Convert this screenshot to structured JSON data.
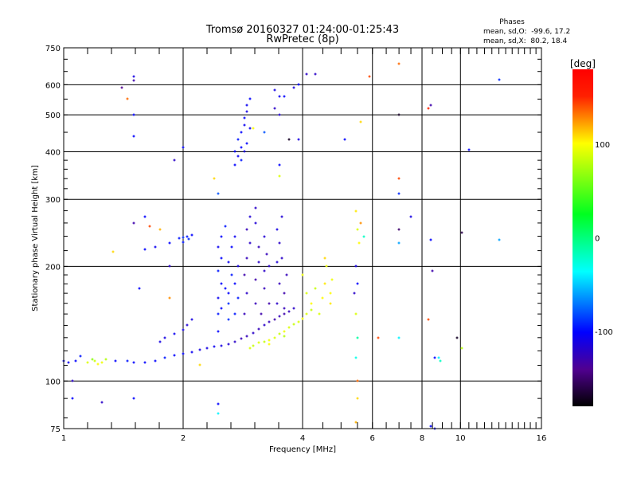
{
  "chart_data": {
    "type": "scatter",
    "title": "Tromsø 20160327 01:24:00-01:25:43",
    "subtitle": "RwPretec (8p)",
    "xlabel": "Frequency [MHz]",
    "ylabel": "Stationary phase Virtual Height [km]",
    "xscale": "log",
    "yscale": "log",
    "xlim": [
      1,
      16
    ],
    "ylim": [
      75,
      750
    ],
    "xticks": [
      "1",
      "2",
      "4",
      "6",
      "8",
      "10",
      "16"
    ],
    "xtick_values": [
      1,
      2,
      4,
      6,
      8,
      10,
      16
    ],
    "yticks": [
      "75",
      "100",
      "200",
      "300",
      "400",
      "500",
      "600",
      "750"
    ],
    "ytick_values": [
      75,
      100,
      200,
      300,
      400,
      500,
      600,
      750
    ],
    "x_grid": [
      2,
      4,
      6,
      8,
      10
    ],
    "y_grid": [
      100,
      200,
      300,
      400,
      500,
      600
    ],
    "colorbar": {
      "label": "[deg]",
      "range": [
        -180,
        180
      ],
      "ticks": [
        "100",
        "0",
        "-100"
      ],
      "tick_values": [
        100,
        0,
        -100
      ]
    },
    "stats": {
      "heading": "Phases",
      "o_line": "mean, sd,O:  -99.6, 17.2",
      "x_line": "mean, sd,X:  80.2, 18.4"
    },
    "point_fields": [
      "frequency_MHz",
      "height_km",
      "phase_deg"
    ],
    "points": [
      [
        1.0,
        113,
        -100
      ],
      [
        1.03,
        112,
        -105
      ],
      [
        1.07,
        113,
        -100
      ],
      [
        1.1,
        116,
        -95
      ],
      [
        1.35,
        113,
        -100
      ],
      [
        1.45,
        113,
        -95
      ],
      [
        1.5,
        112,
        -100
      ],
      [
        1.6,
        112,
        -100
      ],
      [
        1.7,
        113,
        -100
      ],
      [
        1.8,
        115,
        -95
      ],
      [
        1.9,
        117,
        -100
      ],
      [
        2.0,
        118,
        -100
      ],
      [
        2.1,
        119,
        -105
      ],
      [
        2.2,
        121,
        -110
      ],
      [
        2.3,
        122,
        -110
      ],
      [
        2.4,
        123,
        -105
      ],
      [
        2.5,
        124,
        -110
      ],
      [
        2.6,
        125,
        -115
      ],
      [
        2.7,
        127,
        -120
      ],
      [
        2.8,
        129,
        -125
      ],
      [
        2.9,
        131,
        -125
      ],
      [
        3.0,
        134,
        -120
      ],
      [
        3.1,
        137,
        -125
      ],
      [
        3.2,
        140,
        -120
      ],
      [
        3.3,
        143,
        -125
      ],
      [
        3.4,
        145,
        -130
      ],
      [
        3.5,
        148,
        -125
      ],
      [
        3.6,
        150,
        -130
      ],
      [
        3.7,
        152,
        -125
      ],
      [
        3.8,
        155,
        -120
      ],
      [
        1.75,
        127,
        -110
      ],
      [
        1.8,
        130,
        -110
      ],
      [
        1.9,
        133,
        -105
      ],
      [
        2.0,
        136,
        -110
      ],
      [
        2.05,
        140,
        -115
      ],
      [
        2.1,
        145,
        -110
      ],
      [
        1.15,
        112,
        80
      ],
      [
        1.2,
        113,
        75
      ],
      [
        1.25,
        112,
        85
      ],
      [
        1.28,
        114,
        70
      ],
      [
        1.22,
        111,
        90
      ],
      [
        1.18,
        114,
        60
      ],
      [
        2.95,
        122,
        80
      ],
      [
        3.0,
        124,
        75
      ],
      [
        3.1,
        126,
        80
      ],
      [
        3.2,
        127,
        75
      ],
      [
        3.3,
        128,
        85
      ],
      [
        3.4,
        130,
        80
      ],
      [
        3.5,
        133,
        75
      ],
      [
        3.6,
        135,
        85
      ],
      [
        3.7,
        138,
        80
      ],
      [
        3.8,
        141,
        75
      ],
      [
        3.9,
        143,
        80
      ],
      [
        4.0,
        146,
        85
      ],
      [
        4.1,
        150,
        80
      ],
      [
        4.2,
        154,
        75
      ],
      [
        3.6,
        131,
        70
      ],
      [
        3.3,
        125,
        90
      ],
      [
        2.45,
        135,
        -100
      ],
      [
        2.45,
        150,
        -95
      ],
      [
        2.45,
        165,
        -105
      ],
      [
        2.5,
        180,
        -100
      ],
      [
        2.45,
        195,
        -95
      ],
      [
        2.5,
        210,
        -100
      ],
      [
        2.45,
        225,
        -105
      ],
      [
        2.5,
        240,
        -100
      ],
      [
        2.55,
        255,
        -95
      ],
      [
        2.6,
        145,
        -90
      ],
      [
        2.6,
        170,
        -100
      ],
      [
        2.65,
        190,
        -95
      ],
      [
        2.6,
        205,
        -105
      ],
      [
        2.6,
        160,
        -90
      ],
      [
        2.55,
        175,
        -100
      ],
      [
        2.7,
        150,
        -95
      ],
      [
        2.7,
        180,
        -100
      ],
      [
        2.75,
        200,
        -110
      ],
      [
        2.65,
        225,
        -100
      ],
      [
        2.7,
        240,
        -105
      ],
      [
        2.75,
        165,
        -95
      ],
      [
        2.5,
        155,
        -100
      ],
      [
        2.85,
        150,
        -125
      ],
      [
        2.9,
        170,
        -120
      ],
      [
        2.85,
        190,
        -130
      ],
      [
        2.9,
        210,
        -125
      ],
      [
        2.95,
        230,
        -120
      ],
      [
        2.9,
        250,
        -125
      ],
      [
        2.95,
        270,
        -115
      ],
      [
        3.05,
        160,
        -125
      ],
      [
        3.05,
        185,
        -130
      ],
      [
        3.1,
        205,
        -120
      ],
      [
        3.1,
        225,
        -125
      ],
      [
        3.05,
        260,
        -115
      ],
      [
        3.05,
        285,
        -120
      ],
      [
        3.15,
        150,
        -130
      ],
      [
        3.2,
        175,
        -125
      ],
      [
        3.2,
        195,
        -120
      ],
      [
        3.25,
        215,
        -125
      ],
      [
        3.2,
        240,
        -115
      ],
      [
        3.3,
        160,
        -130
      ],
      [
        3.3,
        200,
        -120
      ],
      [
        3.45,
        160,
        -120
      ],
      [
        3.5,
        180,
        -125
      ],
      [
        3.45,
        205,
        -115
      ],
      [
        3.5,
        230,
        -120
      ],
      [
        3.45,
        250,
        -110
      ],
      [
        3.55,
        270,
        -115
      ],
      [
        3.6,
        170,
        -130
      ],
      [
        3.6,
        155,
        -125
      ],
      [
        3.55,
        210,
        -120
      ],
      [
        3.65,
        190,
        -125
      ],
      [
        2.7,
        370,
        -100
      ],
      [
        2.75,
        390,
        -105
      ],
      [
        2.8,
        410,
        -100
      ],
      [
        2.75,
        430,
        -95
      ],
      [
        2.8,
        450,
        -100
      ],
      [
        2.85,
        470,
        -105
      ],
      [
        2.85,
        490,
        -100
      ],
      [
        2.9,
        510,
        -110
      ],
      [
        2.9,
        530,
        -105
      ],
      [
        2.95,
        550,
        -100
      ],
      [
        2.8,
        380,
        -95
      ],
      [
        2.9,
        420,
        -100
      ],
      [
        2.95,
        460,
        -105
      ],
      [
        2.7,
        400,
        -100
      ],
      [
        2.85,
        400,
        -110
      ],
      [
        3.4,
        580,
        -110
      ],
      [
        3.5,
        560,
        -105
      ],
      [
        3.4,
        520,
        -120
      ],
      [
        3.5,
        500,
        -115
      ],
      [
        3.6,
        560,
        -100
      ],
      [
        3.8,
        590,
        -110
      ],
      [
        3.9,
        600,
        -100
      ],
      [
        4.1,
        640,
        -120
      ],
      [
        3.7,
        430,
        -170
      ],
      [
        3.9,
        430,
        -110
      ],
      [
        3.5,
        370,
        -100
      ],
      [
        1.95,
        237,
        -95
      ],
      [
        2.0,
        238,
        -90
      ],
      [
        2.05,
        240,
        -95
      ],
      [
        2.1,
        242,
        -100
      ],
      [
        2.0,
        232,
        -95
      ],
      [
        2.07,
        236,
        -90
      ],
      [
        1.85,
        230,
        -100
      ],
      [
        1.7,
        225,
        -105
      ],
      [
        1.6,
        222,
        -100
      ],
      [
        4.5,
        165,
        90
      ],
      [
        4.55,
        180,
        95
      ],
      [
        4.6,
        200,
        85
      ],
      [
        4.55,
        210,
        100
      ],
      [
        4.7,
        170,
        90
      ],
      [
        4.75,
        185,
        85
      ],
      [
        4.7,
        160,
        95
      ],
      [
        4.4,
        150,
        80
      ],
      [
        4.3,
        175,
        75
      ],
      [
        4.2,
        160,
        90
      ],
      [
        4.1,
        170,
        80
      ],
      [
        4.0,
        190,
        85
      ],
      [
        5.45,
        280,
        95
      ],
      [
        5.5,
        250,
        80
      ],
      [
        5.55,
        230,
        90
      ],
      [
        5.45,
        200,
        -110
      ],
      [
        5.5,
        180,
        -100
      ],
      [
        5.4,
        170,
        -120
      ],
      [
        5.45,
        150,
        80
      ],
      [
        5.5,
        130,
        -10
      ],
      [
        5.45,
        115,
        -30
      ],
      [
        5.5,
        100,
        130
      ],
      [
        5.5,
        90,
        100
      ],
      [
        5.45,
        78,
        110
      ],
      [
        5.6,
        260,
        120
      ],
      [
        5.7,
        240,
        -20
      ],
      [
        1.5,
        630,
        -110
      ],
      [
        1.5,
        615,
        -130
      ],
      [
        1.4,
        590,
        -140
      ],
      [
        1.45,
        550,
        130
      ],
      [
        1.5,
        500,
        -100
      ],
      [
        1.5,
        440,
        -100
      ],
      [
        1.5,
        260,
        -130
      ],
      [
        1.33,
        218,
        100
      ],
      [
        1.55,
        175,
        -100
      ],
      [
        1.85,
        200,
        -120
      ],
      [
        1.9,
        380,
        -120
      ],
      [
        2.0,
        410,
        -100
      ],
      [
        2.45,
        310,
        -80
      ],
      [
        2.4,
        340,
        100
      ],
      [
        4.3,
        640,
        -120
      ],
      [
        5.1,
        430,
        -100
      ],
      [
        5.6,
        480,
        100
      ],
      [
        5.9,
        630,
        140
      ],
      [
        7.0,
        680,
        130
      ],
      [
        7.0,
        500,
        -170
      ],
      [
        7.0,
        340,
        140
      ],
      [
        7.0,
        310,
        -90
      ],
      [
        7.0,
        250,
        -150
      ],
      [
        7.0,
        230,
        -60
      ],
      [
        7.0,
        130,
        -40
      ],
      [
        6.2,
        130,
        140
      ],
      [
        7.5,
        270,
        -110
      ],
      [
        8.3,
        520,
        150
      ],
      [
        8.4,
        530,
        -130
      ],
      [
        8.4,
        235,
        -100
      ],
      [
        8.5,
        195,
        -130
      ],
      [
        8.3,
        145,
        140
      ],
      [
        8.6,
        115,
        -100
      ],
      [
        8.8,
        115,
        -40
      ],
      [
        8.9,
        113,
        -20
      ],
      [
        9.8,
        130,
        -170
      ],
      [
        10.1,
        122,
        70
      ],
      [
        10.1,
        245,
        -160
      ],
      [
        10.5,
        405,
        -100
      ],
      [
        12.5,
        235,
        -60
      ],
      [
        12.5,
        620,
        -90
      ],
      [
        1.05,
        90,
        -100
      ],
      [
        1.25,
        88,
        -120
      ],
      [
        1.5,
        90,
        -100
      ],
      [
        2.45,
        87,
        -100
      ],
      [
        2.45,
        82,
        -40
      ],
      [
        8.4,
        76,
        -100
      ],
      [
        8.6,
        75,
        -100
      ],
      [
        1.65,
        255,
        140
      ],
      [
        1.6,
        270,
        -100
      ],
      [
        1.75,
        250,
        110
      ],
      [
        1.05,
        100,
        -120
      ],
      [
        2.2,
        110,
        100
      ],
      [
        1.85,
        165,
        120
      ],
      [
        3.5,
        345,
        80
      ],
      [
        3.0,
        460,
        90
      ],
      [
        3.2,
        450,
        -80
      ]
    ]
  }
}
